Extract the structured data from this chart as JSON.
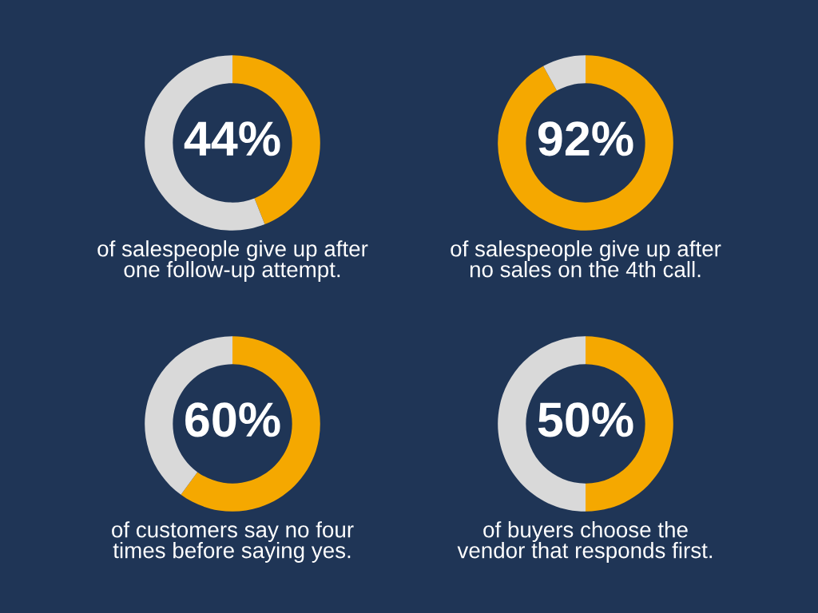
{
  "chart_data": [
    {
      "type": "donut",
      "categories": [
        null,
        null
      ],
      "values": [
        44,
        56
      ],
      "colors": [
        "#f5a800",
        "#d9d9d9"
      ],
      "value_labels": [
        "44%",
        null
      ],
      "annotations": [
        "of salespeople give up after\none follow-up attempt."
      ]
    },
    {
      "type": "donut",
      "categories": [
        null,
        null
      ],
      "values": [
        92,
        8
      ],
      "colors": [
        "#f5a800",
        "#d9d9d9"
      ],
      "value_labels": [
        "92%",
        null
      ],
      "annotations": [
        "of salespeople give up after\nno sales on the 4th call."
      ]
    },
    {
      "type": "donut",
      "categories": [
        null,
        null
      ],
      "values": [
        60,
        40
      ],
      "colors": [
        "#f5a800",
        "#d9d9d9"
      ],
      "value_labels": [
        "60%",
        null
      ],
      "annotations": [
        "of customers say no four\ntimes before saying yes."
      ]
    },
    {
      "type": "donut",
      "categories": [
        null,
        null
      ],
      "values": [
        50,
        50
      ],
      "colors": [
        "#f5a800",
        "#d9d9d9"
      ],
      "value_labels": [
        "50%",
        null
      ],
      "annotations": [
        "of buyers choose the\nvendor that responds first."
      ]
    }
  ]
}
